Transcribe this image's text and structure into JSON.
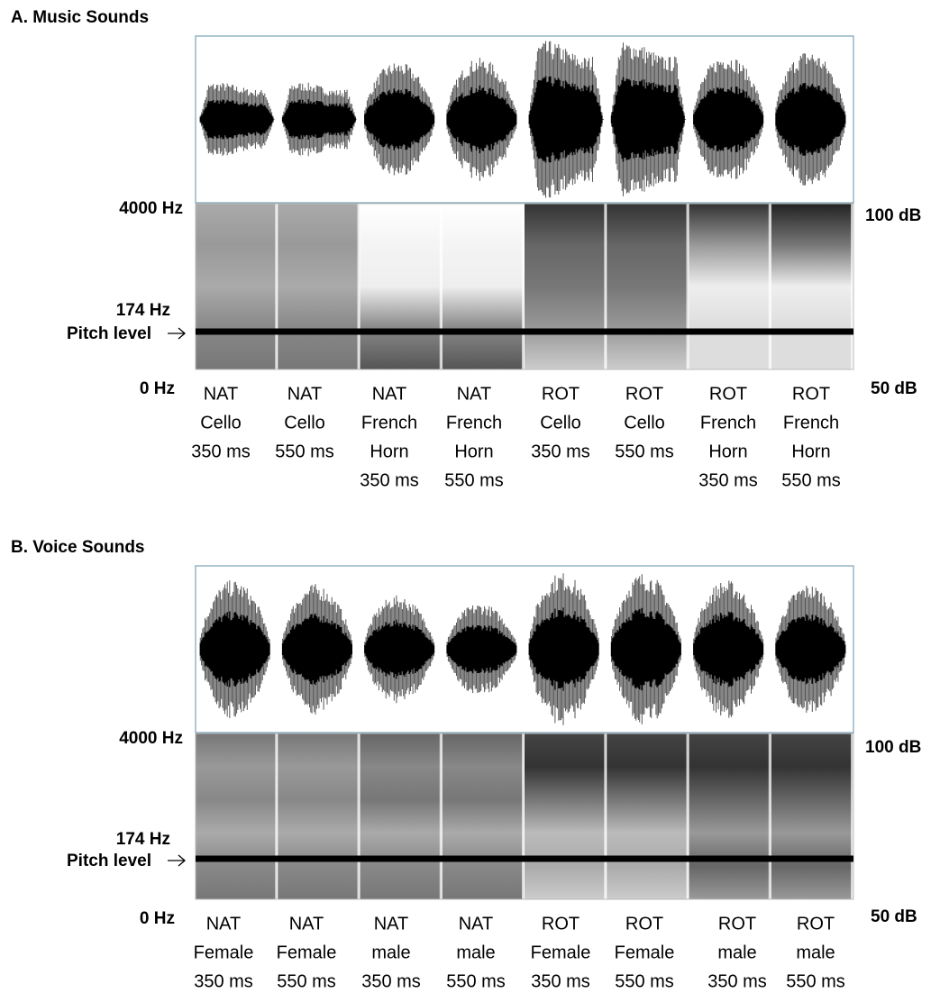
{
  "panels": [
    {
      "title": "A. Music Sounds",
      "freq_top": "4000 Hz",
      "freq_pitch": "174 Hz",
      "pitch_label": "Pitch level",
      "freq_bottom": "0 Hz",
      "db_top": "100 dB",
      "db_bottom": "50 dB",
      "stimuli": [
        [
          "NAT",
          "Cello",
          "350 ms"
        ],
        [
          "NAT",
          "Cello",
          "550 ms"
        ],
        [
          "NAT",
          "French",
          "Horn",
          "350 ms"
        ],
        [
          "NAT",
          "French",
          "Horn",
          "550 ms"
        ],
        [
          "ROT",
          "Cello",
          "350 ms"
        ],
        [
          "ROT",
          "Cello",
          "550 ms"
        ],
        [
          "ROT",
          "French",
          "Horn",
          "350 ms"
        ],
        [
          "ROT",
          "French",
          "Horn",
          "550 ms"
        ]
      ]
    },
    {
      "title": "B. Voice Sounds",
      "freq_top": "4000 Hz",
      "freq_pitch": "174 Hz",
      "pitch_label": "Pitch level",
      "freq_bottom": "0 Hz",
      "db_top": "100 dB",
      "db_bottom": "50 dB",
      "stimuli": [
        [
          "NAT",
          "Female",
          "350 ms"
        ],
        [
          "NAT",
          "Female",
          "550 ms"
        ],
        [
          "NAT",
          "male",
          "350 ms"
        ],
        [
          "NAT",
          "male",
          "550 ms"
        ],
        [
          "ROT",
          "Female",
          "350 ms"
        ],
        [
          "ROT",
          "Female",
          "550 ms"
        ],
        [
          "ROT",
          "male",
          "350 ms"
        ],
        [
          "ROT",
          "male",
          "550 ms"
        ]
      ]
    }
  ]
}
